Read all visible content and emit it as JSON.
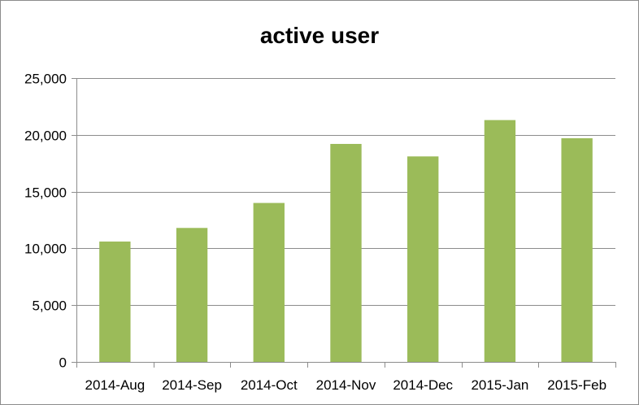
{
  "chart_data": {
    "type": "bar",
    "title": "active user",
    "xlabel": "",
    "ylabel": "",
    "categories": [
      "2014-Aug",
      "2014-Sep",
      "2014-Oct",
      "2014-Nov",
      "2014-Dec",
      "2015-Jan",
      "2015-Feb"
    ],
    "values": [
      10600,
      11800,
      14000,
      19200,
      18100,
      21300,
      19700
    ],
    "ylim": [
      0,
      25000
    ],
    "yticks": [
      0,
      5000,
      10000,
      15000,
      20000,
      25000
    ],
    "ytick_labels": [
      "0",
      "5,000",
      "10,000",
      "15,000",
      "20,000",
      "25,000"
    ],
    "grid": true,
    "legend": "none",
    "bar_color": "#9bbb59"
  }
}
